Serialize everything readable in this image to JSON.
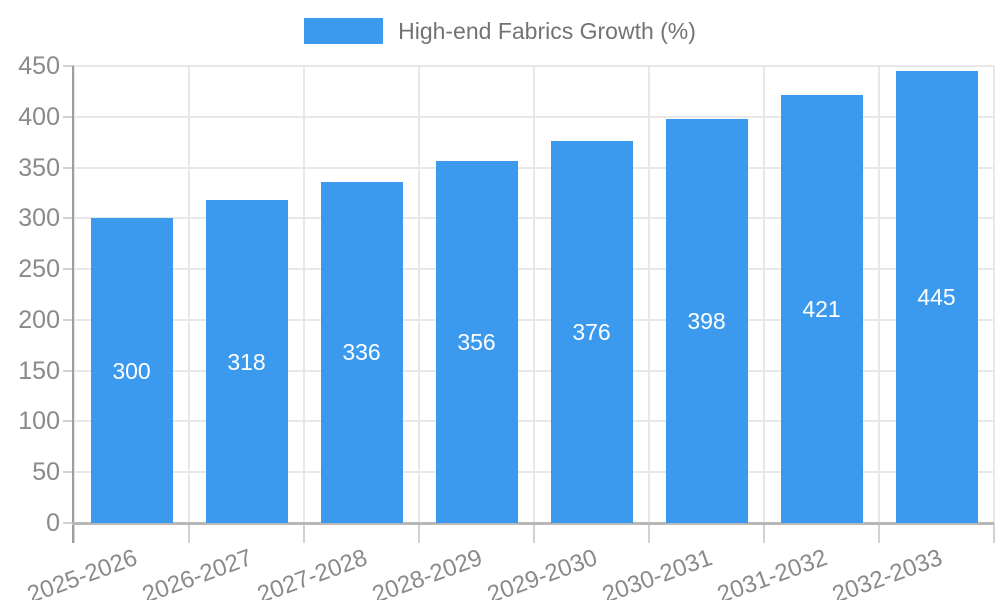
{
  "legend": {
    "label": "High-end Fabrics Growth (%)"
  },
  "colors": {
    "bar": "#3b9aee",
    "grid": "#e8e8e8",
    "axis_y_line": "#9e9e9e",
    "axis_x_line": "#b8b8b8",
    "tick_mark": "#d2d2d2",
    "tick_label_text": "#8a8a8a",
    "legend_text": "#737373",
    "bar_label_text": "#ffffff",
    "background": "#ffffff"
  },
  "chart_data": {
    "type": "bar",
    "title": "High-end Fabrics Growth (%)",
    "categories": [
      "2025-2026",
      "2026-2027",
      "2027-2028",
      "2028-2029",
      "2029-2030",
      "2030-2031",
      "2031-2032",
      "2032-2033"
    ],
    "values": [
      300,
      318,
      336,
      356,
      376,
      398,
      421,
      445
    ],
    "value_labels": [
      "300",
      "318",
      "336",
      "356",
      "376",
      "398",
      "421",
      "445"
    ],
    "xlabel": "",
    "ylabel": "",
    "ylim": [
      0,
      450
    ],
    "ytick_step": 50,
    "ytick_labels": [
      "0",
      "50",
      "100",
      "150",
      "200",
      "250",
      "300",
      "350",
      "400",
      "450"
    ],
    "grid": true,
    "legend_position": "top-center",
    "value_label_position": "inside-center",
    "x_label_rotation_deg": -20
  }
}
